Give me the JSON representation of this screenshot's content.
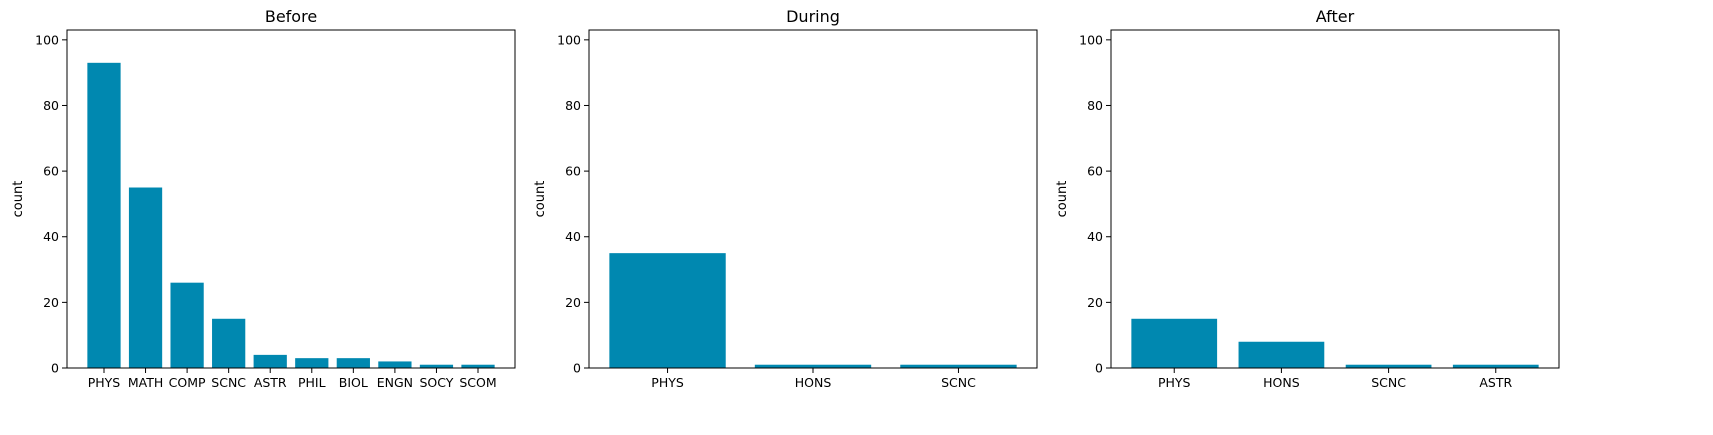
{
  "figure": {
    "bar_color": "#0088b0",
    "axis_color": "#000000"
  },
  "chart_data": [
    {
      "type": "bar",
      "title": "Before",
      "xlabel": "",
      "ylabel": "count",
      "ylim": [
        0,
        103
      ],
      "yticks": [
        0,
        20,
        40,
        60,
        80,
        100
      ],
      "categories": [
        "PHYS",
        "MATH",
        "COMP",
        "SCNC",
        "ASTR",
        "PHIL",
        "BIOL",
        "ENGN",
        "SOCY",
        "SCOM"
      ],
      "values": [
        93,
        55,
        26,
        15,
        4,
        3,
        3,
        2,
        1,
        1
      ],
      "grid": false
    },
    {
      "type": "bar",
      "title": "During",
      "xlabel": "",
      "ylabel": "count",
      "ylim": [
        0,
        103
      ],
      "yticks": [
        0,
        20,
        40,
        60,
        80,
        100
      ],
      "categories": [
        "PHYS",
        "HONS",
        "SCNC"
      ],
      "values": [
        35,
        1,
        1
      ],
      "grid": false
    },
    {
      "type": "bar",
      "title": "After",
      "xlabel": "",
      "ylabel": "count",
      "ylim": [
        0,
        103
      ],
      "yticks": [
        0,
        20,
        40,
        60,
        80,
        100
      ],
      "categories": [
        "PHYS",
        "HONS",
        "SCNC",
        "ASTR"
      ],
      "values": [
        15,
        8,
        1,
        1
      ],
      "grid": false
    }
  ]
}
